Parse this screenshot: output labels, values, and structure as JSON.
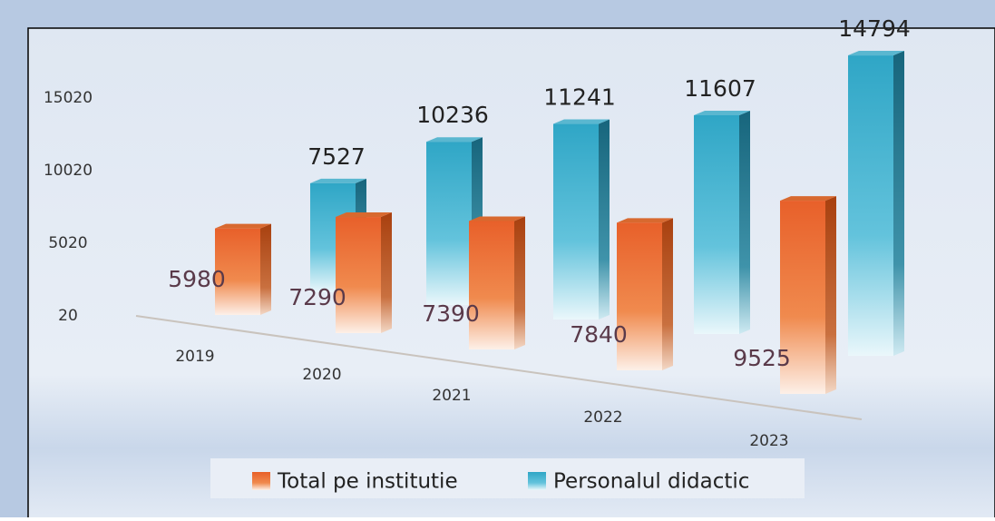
{
  "chart_data": {
    "type": "bar",
    "categories": [
      "2019",
      "2020",
      "2021",
      "2022",
      "2023"
    ],
    "series": [
      {
        "name": "Total pe institutie",
        "color": "#e8602a",
        "values": [
          5980,
          7290,
          7390,
          7840,
          9525
        ]
      },
      {
        "name": "Personalul didactic",
        "color": "#2fa6c6",
        "values": [
          7527,
          10236,
          11241,
          11607,
          14794
        ]
      }
    ],
    "ylim": [
      20,
      15020
    ],
    "yticks": [
      20,
      5020,
      10020,
      15020
    ]
  }
}
